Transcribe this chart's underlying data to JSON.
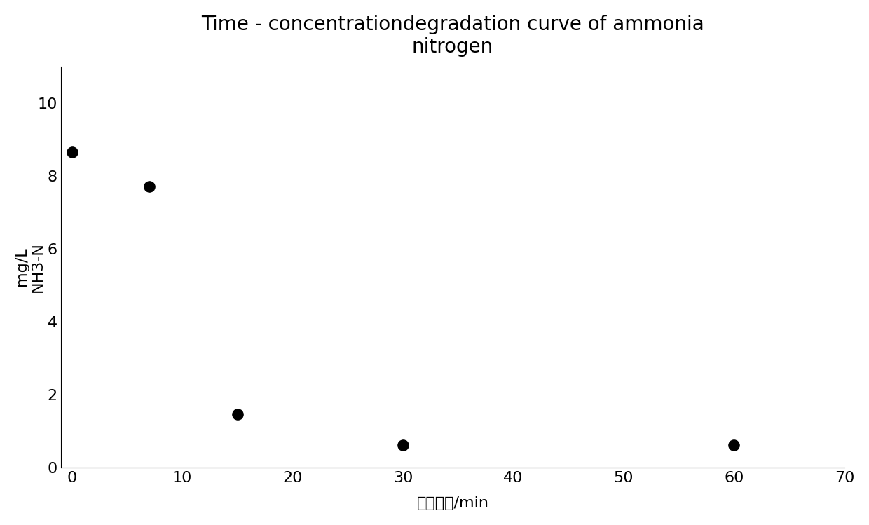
{
  "title": "Time - concentrationdegradation curve of ammonia\nnitrogen",
  "xlabel_cn": "曝气时间",
  "xlabel_suffix": "/min",
  "ylabel_line1": "mg/L",
  "ylabel_line2": "NH3-N",
  "x_data": [
    0,
    7,
    15,
    30,
    60
  ],
  "y_data": [
    8.65,
    7.7,
    1.45,
    0.6,
    0.6
  ],
  "xlim": [
    -1,
    70
  ],
  "ylim": [
    0,
    11
  ],
  "xticks": [
    0,
    10,
    20,
    30,
    40,
    50,
    60,
    70
  ],
  "yticks": [
    0,
    2,
    4,
    6,
    8,
    10
  ],
  "marker_color": "#000000",
  "marker_size": 120,
  "background_color": "#ffffff",
  "title_fontsize": 20,
  "axis_label_fontsize": 16,
  "tick_fontsize": 16,
  "ylabel_fontsize": 16
}
